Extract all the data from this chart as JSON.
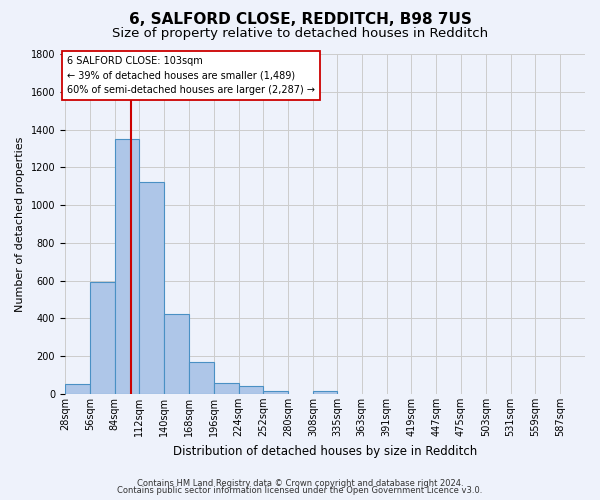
{
  "title": "6, SALFORD CLOSE, REDDITCH, B98 7US",
  "subtitle": "Size of property relative to detached houses in Redditch",
  "xlabel": "Distribution of detached houses by size in Redditch",
  "ylabel": "Number of detached properties",
  "footnote1": "Contains HM Land Registry data © Crown copyright and database right 2024.",
  "footnote2": "Contains public sector information licensed under the Open Government Licence v3.0.",
  "bin_labels": [
    "28sqm",
    "56sqm",
    "84sqm",
    "112sqm",
    "140sqm",
    "168sqm",
    "196sqm",
    "224sqm",
    "252sqm",
    "280sqm",
    "308sqm",
    "335sqm",
    "363sqm",
    "391sqm",
    "419sqm",
    "447sqm",
    "475sqm",
    "503sqm",
    "531sqm",
    "559sqm",
    "587sqm"
  ],
  "bin_edges": [
    28,
    56,
    84,
    112,
    140,
    168,
    196,
    224,
    252,
    280,
    308,
    335,
    363,
    391,
    419,
    447,
    475,
    503,
    531,
    559,
    587,
    615
  ],
  "bar_values": [
    50,
    595,
    1350,
    1120,
    425,
    170,
    60,
    40,
    15,
    0,
    15,
    0,
    0,
    0,
    0,
    0,
    0,
    0,
    0,
    0,
    0
  ],
  "bar_color": "#aec6e8",
  "bar_edgecolor": "#4a90c4",
  "property_line_x": 103,
  "property_line_color": "#cc0000",
  "annotation_line1": "6 SALFORD CLOSE: 103sqm",
  "annotation_line2": "← 39% of detached houses are smaller (1,489)",
  "annotation_line3": "60% of semi-detached houses are larger (2,287) →",
  "annotation_box_edgecolor": "#cc0000",
  "annotation_box_facecolor": "#ffffff",
  "ylim": [
    0,
    1800
  ],
  "yticks": [
    0,
    200,
    400,
    600,
    800,
    1000,
    1200,
    1400,
    1600,
    1800
  ],
  "grid_color": "#cccccc",
  "background_color": "#eef2fb",
  "title_fontsize": 11,
  "subtitle_fontsize": 9.5,
  "xlabel_fontsize": 8.5,
  "ylabel_fontsize": 8,
  "tick_fontsize": 7,
  "footnote_fontsize": 6
}
